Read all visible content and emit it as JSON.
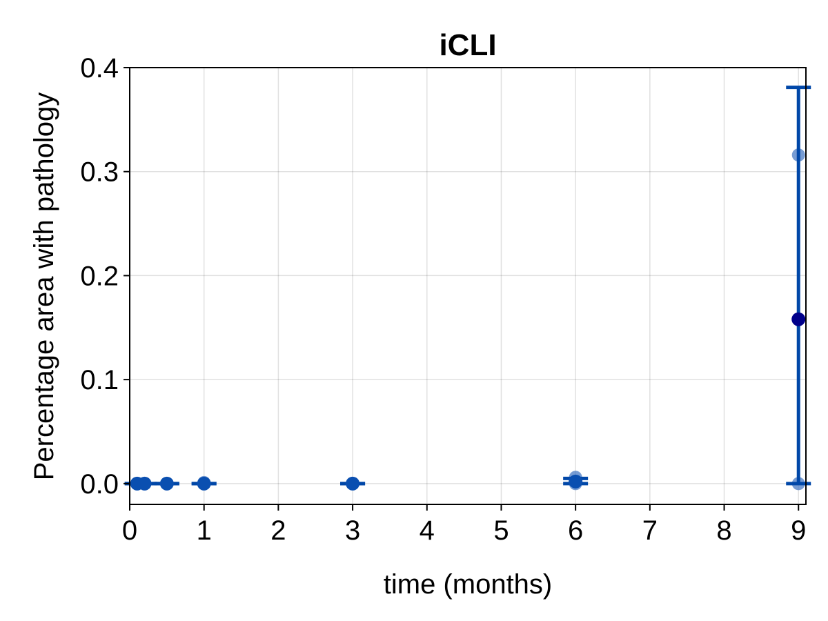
{
  "chart_data": {
    "type": "scatter",
    "title": "iCLI",
    "xlabel": "time (months)",
    "ylabel": "Percentage area with pathology",
    "xlim": [
      0,
      9.1
    ],
    "ylim": [
      -0.02,
      0.4
    ],
    "xticks": [
      0,
      1,
      2,
      3,
      4,
      5,
      6,
      7,
      8,
      9
    ],
    "yticks": [
      0.0,
      0.1,
      0.2,
      0.3,
      0.4
    ],
    "xtick_labels": [
      "0",
      "1",
      "2",
      "3",
      "4",
      "5",
      "6",
      "7",
      "8",
      "9"
    ],
    "ytick_labels": [
      "0.0",
      "0.1",
      "0.2",
      "0.3",
      "0.4"
    ],
    "grid": true,
    "colors": {
      "points": "#4a7bc4",
      "mean": "#00008b",
      "errorbar": "#0047a8",
      "dense_points": "#0a4fb0"
    },
    "series": [
      {
        "kind": "individual",
        "points": [
          {
            "x": 0.1,
            "y": 0.0
          },
          {
            "x": 0.2,
            "y": 0.0
          },
          {
            "x": 0.5,
            "y": 0.0
          },
          {
            "x": 1,
            "y": 0.0
          },
          {
            "x": 1,
            "y": 0.001
          },
          {
            "x": 3,
            "y": 0.0
          },
          {
            "x": 6,
            "y": 0.0
          },
          {
            "x": 6,
            "y": 0.006
          },
          {
            "x": 9,
            "y": 0.0
          },
          {
            "x": 9,
            "y": 0.316
          }
        ]
      },
      {
        "kind": "mean",
        "points": [
          {
            "x": 0.1,
            "y": 0.0
          },
          {
            "x": 0.2,
            "y": 0.0
          },
          {
            "x": 0.5,
            "y": 0.0
          },
          {
            "x": 1,
            "y": 0.0
          },
          {
            "x": 3,
            "y": 0.0
          },
          {
            "x": 6,
            "y": 0.002
          },
          {
            "x": 9,
            "y": 0.158
          }
        ]
      },
      {
        "kind": "errorbar",
        "bars": [
          {
            "x": 0.1,
            "low": 0.0,
            "high": 0.0
          },
          {
            "x": 0.2,
            "low": 0.0,
            "high": 0.0
          },
          {
            "x": 0.5,
            "low": 0.0,
            "high": 0.0
          },
          {
            "x": 1,
            "low": 0.0,
            "high": 0.0
          },
          {
            "x": 3,
            "low": 0.0,
            "high": 0.0
          },
          {
            "x": 6,
            "low": 0.0,
            "high": 0.005
          },
          {
            "x": 9,
            "low": 0.0,
            "high": 0.381
          }
        ]
      }
    ]
  }
}
